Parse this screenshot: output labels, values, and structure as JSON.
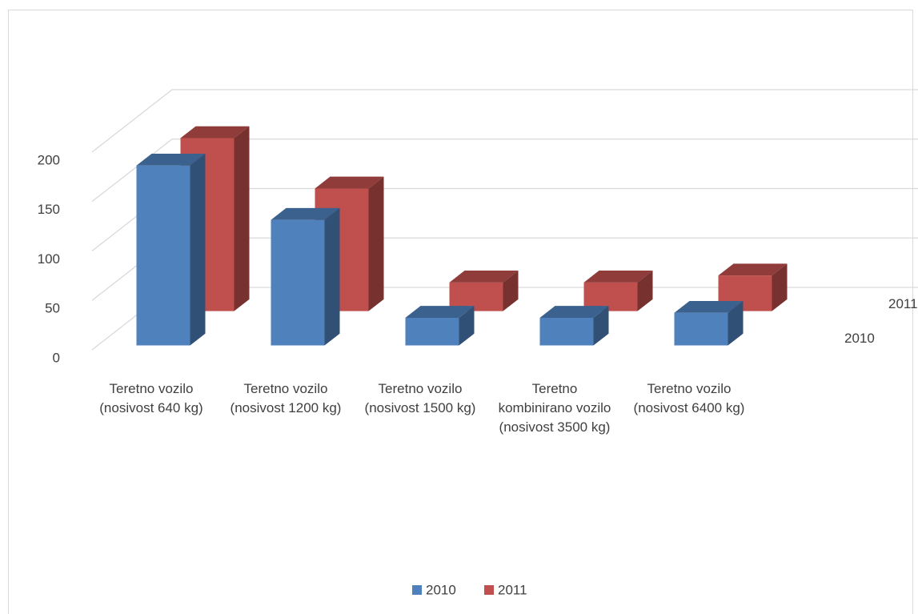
{
  "chart_data": {
    "type": "bar3d",
    "categories": [
      "Teretno vozilo (nosivost 640 kg)",
      "Teretno vozilo (nosivost 1200 kg)",
      "Teretno vozilo (nosivost 1500 kg)",
      "Teretno kombinirano vozilo (nosivost 3500 kg)",
      "Teretno vozilo (nosivost 6400 kg)"
    ],
    "series": [
      {
        "name": "2010",
        "color": "#4f81bd",
        "values": [
          182,
          127,
          28,
          28,
          33
        ]
      },
      {
        "name": "2011",
        "color": "#c0504d",
        "values": [
          175,
          124,
          29,
          29,
          36
        ]
      }
    ],
    "ylim": [
      0,
      200
    ],
    "yticks": [
      0,
      50,
      100,
      150,
      200
    ],
    "grid": true,
    "legend": "bottom"
  }
}
